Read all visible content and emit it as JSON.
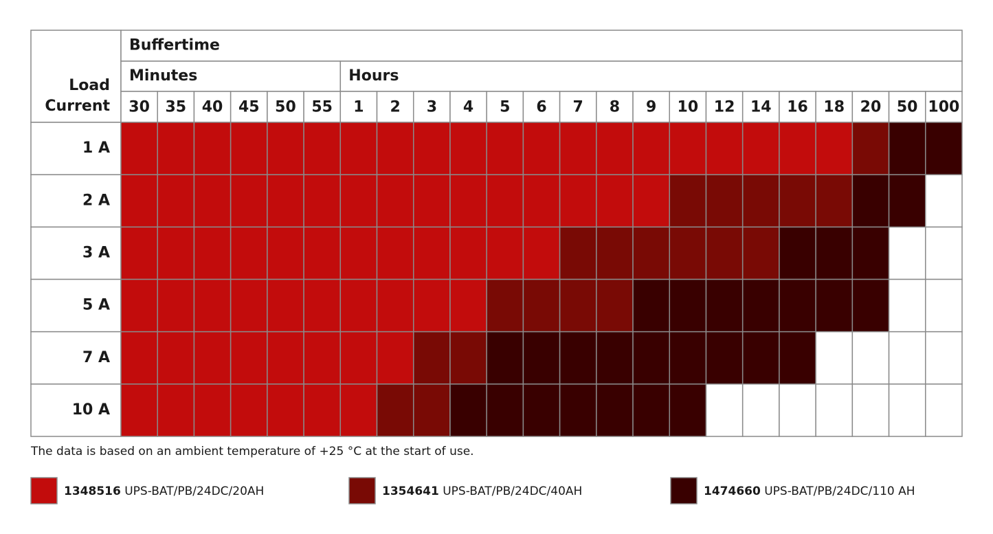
{
  "table": {
    "corner": "Load Current",
    "title": "Buffertime",
    "column_groups": [
      {
        "label": "Minutes",
        "columns": [
          30,
          35,
          40,
          45,
          50,
          55
        ]
      },
      {
        "label": "Hours",
        "columns": [
          1,
          2,
          3,
          4,
          5,
          6,
          7,
          8,
          9,
          10,
          12,
          14,
          16,
          18,
          20,
          50,
          100
        ]
      }
    ],
    "rows": [
      {
        "label": "1 A",
        "cells": [
          0,
          0,
          0,
          0,
          0,
          0,
          0,
          0,
          0,
          0,
          0,
          0,
          0,
          0,
          0,
          0,
          0,
          0,
          0,
          0,
          1,
          2,
          2
        ]
      },
      {
        "label": "2 A",
        "cells": [
          0,
          0,
          0,
          0,
          0,
          0,
          0,
          0,
          0,
          0,
          0,
          0,
          0,
          0,
          0,
          1,
          1,
          1,
          1,
          1,
          2,
          2,
          null
        ]
      },
      {
        "label": "3 A",
        "cells": [
          0,
          0,
          0,
          0,
          0,
          0,
          0,
          0,
          0,
          0,
          0,
          0,
          1,
          1,
          1,
          1,
          1,
          1,
          2,
          2,
          2,
          null,
          null
        ]
      },
      {
        "label": "5 A",
        "cells": [
          0,
          0,
          0,
          0,
          0,
          0,
          0,
          0,
          0,
          0,
          1,
          1,
          1,
          1,
          2,
          2,
          2,
          2,
          2,
          2,
          2,
          null,
          null
        ]
      },
      {
        "label": "7 A",
        "cells": [
          0,
          0,
          0,
          0,
          0,
          0,
          0,
          0,
          1,
          1,
          2,
          2,
          2,
          2,
          2,
          2,
          2,
          2,
          2,
          null,
          null,
          null,
          null
        ]
      },
      {
        "label": "10 A",
        "cells": [
          0,
          0,
          0,
          0,
          0,
          0,
          0,
          1,
          1,
          2,
          2,
          2,
          2,
          2,
          2,
          2,
          null,
          null,
          null,
          null,
          null,
          null,
          null
        ]
      }
    ]
  },
  "note": "The data is based on an ambient temperature of +25 °C at the start of use.",
  "legend": [
    {
      "code": "1348516",
      "description": "UPS-BAT/PB/24DC/20AH",
      "color": "#c20c0c"
    },
    {
      "code": "1354641",
      "description": "UPS-BAT/PB/24DC/40AH",
      "color": "#790a05"
    },
    {
      "code": "1474660",
      "description": "UPS-BAT/PB/24DC/110 AH",
      "color": "#390000"
    }
  ]
}
